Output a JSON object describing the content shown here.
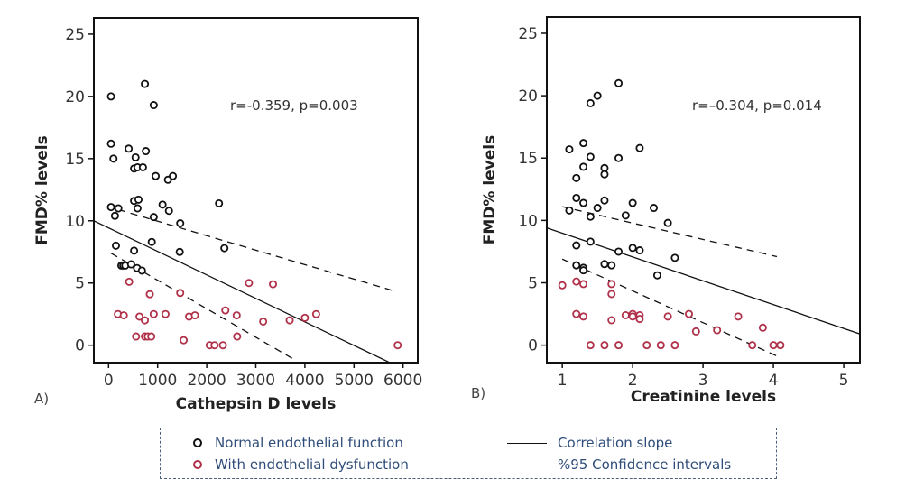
{
  "chart_data": [
    {
      "type": "scatter",
      "panel_label": "A)",
      "title": "",
      "xlabel": "Cathepsin D levels",
      "ylabel": "FMD% levels",
      "xlim": [
        -300,
        6300
      ],
      "ylim": [
        -1.4,
        26.3
      ],
      "xticks": [
        0,
        1000,
        2000,
        3000,
        4000,
        5000,
        6000
      ],
      "yticks": [
        0,
        5,
        10,
        15,
        20,
        25
      ],
      "grid": false,
      "annotation": "r=-0.359, p=0.003",
      "series": [
        {
          "name": "Normal endothelial function",
          "key": "normal",
          "points": [
            [
              50,
              20.0
            ],
            [
              740,
              21.0
            ],
            [
              920,
              19.3
            ],
            [
              50,
              16.2
            ],
            [
              100,
              15.0
            ],
            [
              410,
              15.8
            ],
            [
              550,
              15.1
            ],
            [
              760,
              15.6
            ],
            [
              520,
              14.2
            ],
            [
              590,
              14.3
            ],
            [
              700,
              14.3
            ],
            [
              960,
              13.6
            ],
            [
              1210,
              13.3
            ],
            [
              1310,
              13.6
            ],
            [
              50,
              11.1
            ],
            [
              130,
              10.4
            ],
            [
              200,
              11.0
            ],
            [
              520,
              11.6
            ],
            [
              610,
              11.7
            ],
            [
              590,
              11.0
            ],
            [
              920,
              10.3
            ],
            [
              1100,
              11.3
            ],
            [
              1230,
              10.8
            ],
            [
              1460,
              9.8
            ],
            [
              2250,
              11.4
            ],
            [
              150,
              8.0
            ],
            [
              520,
              7.6
            ],
            [
              880,
              8.3
            ],
            [
              1450,
              7.5
            ],
            [
              2360,
              7.8
            ],
            [
              260,
              6.4
            ],
            [
              300,
              6.4
            ],
            [
              340,
              6.4
            ],
            [
              460,
              6.5
            ],
            [
              580,
              6.2
            ],
            [
              680,
              6.0
            ]
          ]
        },
        {
          "name": "With endothelial dysfunction",
          "key": "dysfunction",
          "points": [
            [
              420,
              5.1
            ],
            [
              840,
              4.1
            ],
            [
              1460,
              4.2
            ],
            [
              2860,
              5.0
            ],
            [
              3350,
              4.9
            ],
            [
              190,
              2.5
            ],
            [
              310,
              2.4
            ],
            [
              630,
              2.3
            ],
            [
              740,
              2.0
            ],
            [
              920,
              2.5
            ],
            [
              1160,
              2.5
            ],
            [
              1640,
              2.3
            ],
            [
              1760,
              2.4
            ],
            [
              2380,
              2.8
            ],
            [
              2610,
              2.4
            ],
            [
              3150,
              1.9
            ],
            [
              3690,
              2.0
            ],
            [
              4000,
              2.2
            ],
            [
              4230,
              2.5
            ],
            [
              560,
              0.7
            ],
            [
              740,
              0.7
            ],
            [
              800,
              0.7
            ],
            [
              870,
              0.7
            ],
            [
              1530,
              0.4
            ],
            [
              2620,
              0.7
            ],
            [
              2060,
              0.0
            ],
            [
              2160,
              0.0
            ],
            [
              2330,
              0.0
            ],
            [
              5890,
              0.0
            ]
          ]
        }
      ],
      "fit_line": {
        "name": "Correlation slope",
        "x": [
          -300,
          5730
        ],
        "y": [
          10.0,
          -1.4
        ]
      },
      "ci_upper": {
        "name": "%95 Confidence intervals",
        "x": [
          200,
          5870
        ],
        "y": [
          10.9,
          4.3
        ]
      },
      "ci_lower": {
        "name": "%95 Confidence intervals",
        "x": [
          50,
          3760
        ],
        "y": [
          7.4,
          -1.1
        ]
      }
    },
    {
      "type": "scatter",
      "panel_label": "B)",
      "title": "",
      "xlabel": "Creatinine levels",
      "ylabel": "FMD% levels",
      "xlim": [
        0.78,
        5.23
      ],
      "ylim": [
        -1.4,
        26.3
      ],
      "xticks": [
        1,
        2,
        3,
        4,
        5
      ],
      "yticks": [
        0,
        5,
        10,
        15,
        20,
        25
      ],
      "grid": false,
      "annotation": "r=–0.304, p=0.014",
      "series": [
        {
          "name": "Normal endothelial function",
          "key": "normal",
          "points": [
            [
              1.8,
              21.0
            ],
            [
              1.5,
              20.0
            ],
            [
              1.4,
              19.4
            ],
            [
              1.1,
              15.7
            ],
            [
              1.3,
              16.2
            ],
            [
              1.4,
              15.1
            ],
            [
              1.8,
              15.0
            ],
            [
              2.1,
              15.8
            ],
            [
              1.3,
              14.3
            ],
            [
              1.6,
              14.2
            ],
            [
              1.6,
              13.7
            ],
            [
              1.2,
              13.4
            ],
            [
              1.2,
              11.8
            ],
            [
              1.3,
              11.4
            ],
            [
              1.6,
              11.6
            ],
            [
              1.5,
              11.0
            ],
            [
              2.0,
              11.4
            ],
            [
              2.3,
              11.0
            ],
            [
              1.1,
              10.8
            ],
            [
              1.4,
              10.3
            ],
            [
              1.9,
              10.4
            ],
            [
              2.5,
              9.8
            ],
            [
              1.2,
              8.0
            ],
            [
              1.4,
              8.3
            ],
            [
              1.8,
              7.5
            ],
            [
              2.0,
              7.8
            ],
            [
              2.1,
              7.6
            ],
            [
              2.6,
              7.0
            ],
            [
              1.2,
              6.4
            ],
            [
              1.3,
              6.2
            ],
            [
              1.3,
              6.0
            ],
            [
              1.6,
              6.5
            ],
            [
              1.7,
              6.4
            ],
            [
              2.35,
              5.6
            ]
          ]
        },
        {
          "name": "With endothelial dysfunction",
          "key": "dysfunction",
          "points": [
            [
              1.0,
              4.8
            ],
            [
              1.2,
              5.1
            ],
            [
              1.3,
              4.9
            ],
            [
              1.7,
              4.9
            ],
            [
              1.7,
              4.1
            ],
            [
              1.2,
              2.5
            ],
            [
              1.3,
              2.3
            ],
            [
              1.7,
              2.0
            ],
            [
              1.9,
              2.4
            ],
            [
              2.0,
              2.5
            ],
            [
              2.0,
              2.3
            ],
            [
              2.1,
              2.4
            ],
            [
              2.1,
              2.1
            ],
            [
              2.5,
              2.3
            ],
            [
              2.8,
              2.5
            ],
            [
              2.9,
              1.1
            ],
            [
              3.2,
              1.2
            ],
            [
              3.5,
              2.3
            ],
            [
              3.85,
              1.4
            ],
            [
              1.4,
              0.0
            ],
            [
              1.6,
              0.0
            ],
            [
              1.8,
              0.0
            ],
            [
              2.2,
              0.0
            ],
            [
              2.4,
              0.0
            ],
            [
              2.6,
              0.0
            ],
            [
              3.7,
              0.0
            ],
            [
              4.0,
              0.0
            ],
            [
              4.1,
              0.0
            ]
          ]
        }
      ],
      "fit_line": {
        "name": "Correlation slope",
        "x": [
          0.78,
          5.23
        ],
        "y": [
          9.4,
          0.9
        ]
      },
      "ci_upper": {
        "name": "%95 Confidence intervals",
        "x": [
          1.0,
          4.05
        ],
        "y": [
          11.1,
          7.1
        ]
      },
      "ci_lower": {
        "name": "%95 Confidence intervals",
        "x": [
          1.0,
          4.1
        ],
        "y": [
          6.9,
          -1.0
        ]
      }
    }
  ],
  "colors": {
    "normal": "#111111",
    "dysfunction": "#b0324a",
    "legend_text": "#2f4d7a",
    "frame": "#111111"
  },
  "legend": {
    "items": [
      {
        "label": "Normal endothelial function",
        "marker": "circle-black"
      },
      {
        "label": "With endothelial dysfunction",
        "marker": "circle-red"
      },
      {
        "label": "Correlation slope",
        "marker": "solid-line"
      },
      {
        "label": "%95 Confidence intervals",
        "marker": "dashed-line"
      }
    ]
  }
}
